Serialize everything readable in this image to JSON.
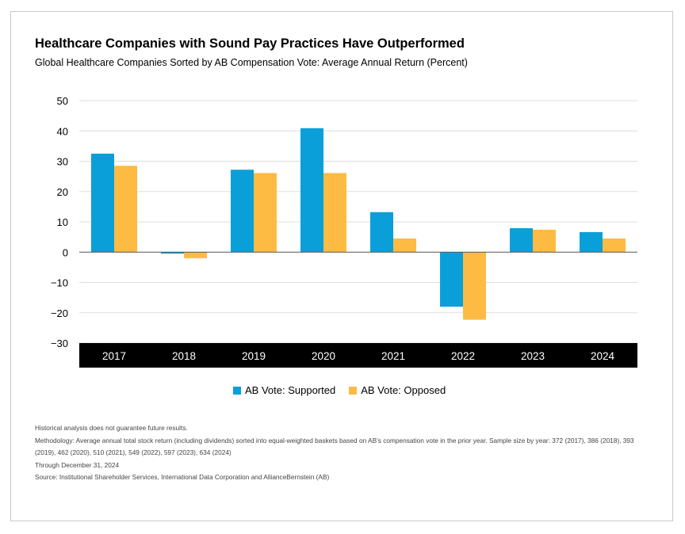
{
  "title": "Healthcare Companies with Sound Pay Practices Have Outperformed",
  "subtitle": "Global Healthcare Companies Sorted by AB Compensation Vote: Average Annual Return (Percent)",
  "notes": [
    "Historical analysis does not guarantee future results.",
    "Methodology: Average annual total stock return (including dividends) sorted into equal-weighted baskets based on AB’s compensation vote in the prior year. Sample size by year: 372 (2017), 386 (2018), 393 (2019), 462 (2020), 510 (2021), 549 (2022), 597 (2023), 634 (2024)",
    "Through December 31, 2024",
    "Source: Institutional Shareholder Services, International Data Corporation and AllianceBernstein (AB)"
  ],
  "colors": {
    "supported": "#0a9fd8",
    "opposed": "#fdbb44",
    "axis_band": "#000000",
    "grid": "#dddddd"
  },
  "chart_data": {
    "type": "bar",
    "title": "Healthcare Companies with Sound Pay Practices Have Outperformed",
    "subtitle": "Global Healthcare Companies Sorted by AB Compensation Vote: Average Annual Return (Percent)",
    "categories": [
      "2017",
      "2018",
      "2019",
      "2020",
      "2021",
      "2022",
      "2023",
      "2024"
    ],
    "series": [
      {
        "name": "AB Vote: Supported",
        "values": [
          32.5,
          -0.5,
          27.2,
          40.9,
          13.2,
          -18.0,
          7.9,
          6.6
        ]
      },
      {
        "name": "AB Vote: Opposed",
        "values": [
          28.5,
          -2.0,
          26.1,
          26.1,
          4.5,
          -22.3,
          7.4,
          4.5
        ]
      }
    ],
    "yticks": [
      50,
      40,
      30,
      20,
      10,
      0,
      -10,
      -20,
      -30
    ],
    "ytick_labels": [
      "50",
      "40",
      "30",
      "20",
      "10",
      "0",
      "−10",
      "−20",
      "−30"
    ],
    "ylim": [
      -30,
      50
    ],
    "grid": true,
    "legend_position": "bottom-center"
  }
}
